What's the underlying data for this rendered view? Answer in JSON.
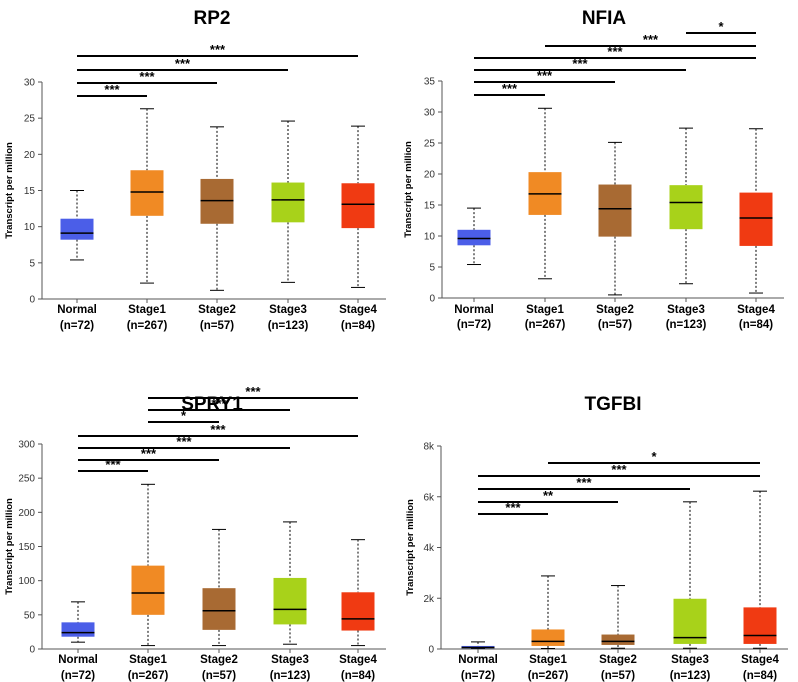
{
  "chart_data": [
    {
      "type": "box",
      "title": "RP2",
      "ylabel": "Transcript per million",
      "ylim": [
        0,
        30
      ],
      "yticks": [
        0,
        5,
        10,
        15,
        20,
        25,
        30
      ],
      "ytick_labels": [
        "0",
        "5",
        "10",
        "15",
        "20",
        "25",
        "30"
      ],
      "categories": [
        "Normal",
        "Stage1",
        "Stage2",
        "Stage3",
        "Stage4"
      ],
      "counts": [
        "(n=72)",
        "(n=267)",
        "(n=57)",
        "(n=123)",
        "(n=84)"
      ],
      "colors": [
        "#4b5ee8",
        "#f08a24",
        "#a86a33",
        "#a8d21a",
        "#f03a12"
      ],
      "boxes": [
        {
          "min": 5.4,
          "q1": 8.2,
          "median": 9.1,
          "q3": 11.1,
          "max": 15.0
        },
        {
          "min": 2.2,
          "q1": 11.5,
          "median": 14.8,
          "q3": 17.8,
          "max": 26.3
        },
        {
          "min": 1.2,
          "q1": 10.4,
          "median": 13.6,
          "q3": 16.6,
          "max": 23.8
        },
        {
          "min": 2.3,
          "q1": 10.6,
          "median": 13.7,
          "q3": 16.1,
          "max": 24.6
        },
        {
          "min": 1.6,
          "q1": 9.8,
          "median": 13.1,
          "q3": 16.0,
          "max": 23.9
        }
      ],
      "significance": [
        {
          "from": 0,
          "to": 1,
          "label": "***"
        },
        {
          "from": 0,
          "to": 2,
          "label": "***"
        },
        {
          "from": 0,
          "to": 3,
          "label": "***"
        },
        {
          "from": 0,
          "to": 4,
          "label": "***"
        }
      ]
    },
    {
      "type": "box",
      "title": "NFIA",
      "ylabel": "Transcript per million",
      "ylim": [
        0,
        35
      ],
      "yticks": [
        0,
        5,
        10,
        15,
        20,
        25,
        30,
        35
      ],
      "ytick_labels": [
        "0",
        "5",
        "10",
        "15",
        "20",
        "25",
        "30",
        "35"
      ],
      "categories": [
        "Normal",
        "Stage1",
        "Stage2",
        "Stage3",
        "Stage4"
      ],
      "counts": [
        "(n=72)",
        "(n=267)",
        "(n=57)",
        "(n=123)",
        "(n=84)"
      ],
      "colors": [
        "#4b5ee8",
        "#f08a24",
        "#a86a33",
        "#a8d21a",
        "#f03a12"
      ],
      "boxes": [
        {
          "min": 5.4,
          "q1": 8.5,
          "median": 9.6,
          "q3": 11.0,
          "max": 14.5
        },
        {
          "min": 3.1,
          "q1": 13.4,
          "median": 16.8,
          "q3": 20.3,
          "max": 30.6
        },
        {
          "min": 0.5,
          "q1": 9.9,
          "median": 14.4,
          "q3": 18.3,
          "max": 25.1
        },
        {
          "min": 2.3,
          "q1": 11.1,
          "median": 15.4,
          "q3": 18.2,
          "max": 27.4
        },
        {
          "min": 0.8,
          "q1": 8.4,
          "median": 12.9,
          "q3": 17.0,
          "max": 27.3
        }
      ],
      "significance": [
        {
          "from": 0,
          "to": 1,
          "label": "***"
        },
        {
          "from": 0,
          "to": 2,
          "label": "***"
        },
        {
          "from": 0,
          "to": 3,
          "label": "***"
        },
        {
          "from": 0,
          "to": 4,
          "label": "***"
        },
        {
          "from": 1,
          "to": 4,
          "label": "***"
        },
        {
          "from": 3,
          "to": 4,
          "label": "*"
        }
      ]
    },
    {
      "type": "box",
      "title": "SPRY1",
      "ylabel": "Transcript per million",
      "ylim": [
        0,
        300
      ],
      "yticks": [
        0,
        50,
        100,
        150,
        200,
        250,
        300
      ],
      "ytick_labels": [
        "0",
        "50",
        "100",
        "150",
        "200",
        "250",
        "300"
      ],
      "categories": [
        "Normal",
        "Stage1",
        "Stage2",
        "Stage3",
        "Stage4"
      ],
      "counts": [
        "(n=72)",
        "(n=267)",
        "(n=57)",
        "(n=123)",
        "(n=84)"
      ],
      "colors": [
        "#4b5ee8",
        "#f08a24",
        "#a86a33",
        "#a8d21a",
        "#f03a12"
      ],
      "boxes": [
        {
          "min": 10,
          "q1": 18,
          "median": 24,
          "q3": 39,
          "max": 69
        },
        {
          "min": 5,
          "q1": 50,
          "median": 82,
          "q3": 122,
          "max": 241
        },
        {
          "min": 5,
          "q1": 28,
          "median": 56,
          "q3": 89,
          "max": 175
        },
        {
          "min": 7,
          "q1": 36,
          "median": 58,
          "q3": 104,
          "max": 186
        },
        {
          "min": 5,
          "q1": 27,
          "median": 44,
          "q3": 83,
          "max": 160
        }
      ],
      "significance": [
        {
          "from": 0,
          "to": 1,
          "label": "***"
        },
        {
          "from": 0,
          "to": 2,
          "label": "***"
        },
        {
          "from": 0,
          "to": 3,
          "label": "***"
        },
        {
          "from": 0,
          "to": 4,
          "label": "***"
        },
        {
          "from": 1,
          "to": 2,
          "label": "*"
        },
        {
          "from": 1,
          "to": 3,
          "label": "***"
        },
        {
          "from": 1,
          "to": 4,
          "label": "***"
        }
      ]
    },
    {
      "type": "box",
      "title": "TGFBI",
      "ylabel": "Transcript per million",
      "ylim": [
        0,
        8000
      ],
      "yticks": [
        0,
        2000,
        4000,
        6000,
        8000
      ],
      "ytick_labels": [
        "0",
        "2k",
        "4k",
        "6k",
        "8k"
      ],
      "categories": [
        "Normal",
        "Stage1",
        "Stage2",
        "Stage3",
        "Stage4"
      ],
      "counts": [
        "(n=72)",
        "(n=267)",
        "(n=57)",
        "(n=123)",
        "(n=84)"
      ],
      "colors": [
        "#4b5ee8",
        "#f08a24",
        "#a86a33",
        "#a8d21a",
        "#f03a12"
      ],
      "boxes": [
        {
          "min": 20,
          "q1": 30,
          "median": 60,
          "q3": 120,
          "max": 280
        },
        {
          "min": 20,
          "q1": 120,
          "median": 300,
          "q3": 770,
          "max": 2880
        },
        {
          "min": 30,
          "q1": 160,
          "median": 300,
          "q3": 570,
          "max": 2500
        },
        {
          "min": 30,
          "q1": 200,
          "median": 450,
          "q3": 1980,
          "max": 5800
        },
        {
          "min": 30,
          "q1": 200,
          "median": 530,
          "q3": 1640,
          "max": 6220
        }
      ],
      "significance": [
        {
          "from": 0,
          "to": 1,
          "label": "***"
        },
        {
          "from": 0,
          "to": 2,
          "label": "**"
        },
        {
          "from": 0,
          "to": 3,
          "label": "***"
        },
        {
          "from": 0,
          "to": 4,
          "label": "***"
        },
        {
          "from": 1,
          "to": 4,
          "label": "*"
        }
      ]
    }
  ]
}
